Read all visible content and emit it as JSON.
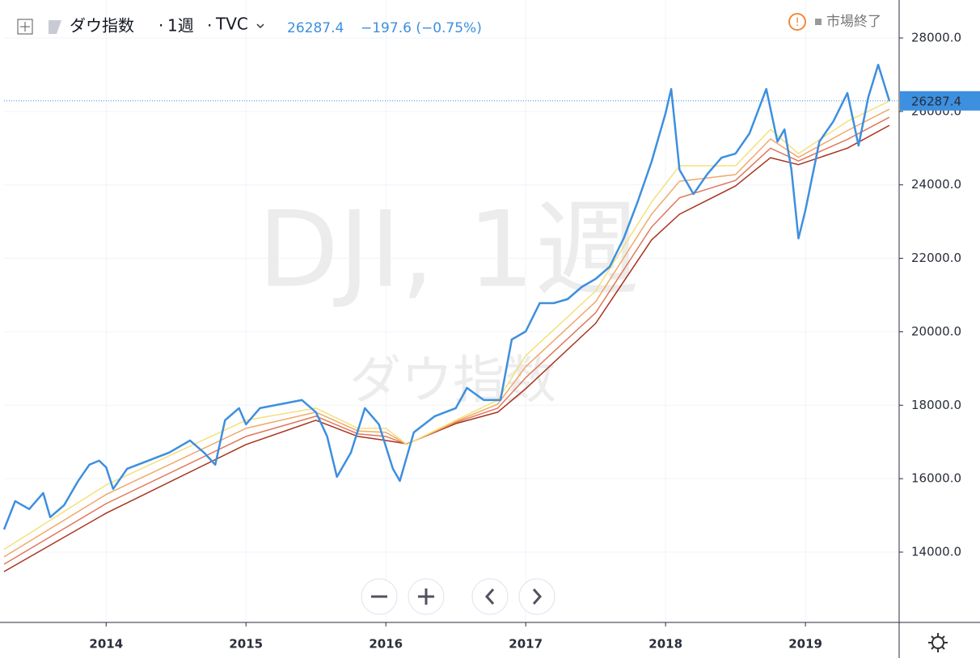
{
  "header": {
    "symbol": "ダウ指数",
    "interval": "1週",
    "exchange": "TVC",
    "last": "26287.4",
    "change": "−197.6 (−0.75%)",
    "status": "市場終了"
  },
  "watermark": {
    "main": "DJI, 1週",
    "sub": "ダウ指数"
  },
  "chart_data": {
    "type": "line",
    "xlim": [
      2013.27,
      2019.67
    ],
    "xticks": [
      2014,
      2015,
      2016,
      2017,
      2018,
      2019
    ],
    "ylim": [
      12085,
      29034
    ],
    "yticks": [
      {
        "value": 14000,
        "label": "14000.0"
      },
      {
        "value": 16000,
        "label": "16000.0"
      },
      {
        "value": 18000,
        "label": "18000.0"
      },
      {
        "value": 20000,
        "label": "20000.0"
      },
      {
        "value": 22000,
        "label": "22000.0"
      },
      {
        "value": 24000,
        "label": "24000.0"
      },
      {
        "value": 26000,
        "label": "26000.0"
      },
      {
        "value": 28000,
        "label": "28000.0"
      }
    ],
    "grid": true,
    "series": [
      {
        "color": "#a8321e",
        "x": [
          2013.27,
          2014,
          2015,
          2015.5,
          2015.8,
          2016,
          2016.15,
          2016.5,
          2016.8,
          2017,
          2017.5,
          2017.9,
          2018.1,
          2018.5,
          2018.75,
          2018.95,
          2019.3,
          2019.6
        ],
        "values": [
          13470,
          15060,
          16930,
          17590,
          17150,
          17040,
          16950,
          17500,
          17810,
          18450,
          20230,
          22500,
          23200,
          23970,
          24740,
          24550,
          25000,
          25620
        ]
      },
      {
        "color": "#e0785a",
        "x": [
          2013.27,
          2014,
          2015,
          2015.5,
          2015.8,
          2016,
          2016.15,
          2016.5,
          2016.8,
          2017,
          2017.5,
          2017.9,
          2018.1,
          2018.5,
          2018.75,
          2018.95,
          2019.3,
          2019.6
        ],
        "values": [
          13670,
          15320,
          17150,
          17700,
          17220,
          17150,
          16940,
          17530,
          17920,
          18750,
          20520,
          22850,
          23650,
          24120,
          25000,
          24650,
          25240,
          25840
        ]
      },
      {
        "color": "#f0a86a",
        "x": [
          2013.27,
          2014,
          2015,
          2015.5,
          2015.8,
          2016,
          2016.15,
          2016.5,
          2016.8,
          2017,
          2017.5,
          2017.9,
          2018.1,
          2018.5,
          2018.75,
          2018.95,
          2019.3,
          2019.6
        ],
        "values": [
          13870,
          15570,
          17370,
          17810,
          17300,
          17260,
          16940,
          17560,
          18030,
          19050,
          20820,
          23200,
          24100,
          24280,
          25250,
          24750,
          25480,
          26060
        ]
      },
      {
        "color": "#f5e07a",
        "x": [
          2013.27,
          2014,
          2015,
          2015.5,
          2015.8,
          2016,
          2016.15,
          2016.5,
          2016.8,
          2017,
          2017.5,
          2017.9,
          2018.1,
          2018.5,
          2018.75,
          2018.95,
          2019.3,
          2019.6
        ],
        "values": [
          14070,
          15830,
          17590,
          17920,
          17370,
          17370,
          16930,
          17590,
          18140,
          19350,
          21110,
          23530,
          24520,
          24520,
          25510,
          24850,
          25730,
          26280
        ]
      },
      {
        "color": "#3d8fdf",
        "x": [
          2013.27,
          2013.35,
          2013.45,
          2013.55,
          2013.6,
          2013.7,
          2013.8,
          2013.88,
          2013.95,
          2014,
          2014.05,
          2014.15,
          2014.3,
          2014.45,
          2014.6,
          2014.7,
          2014.78,
          2014.85,
          2014.95,
          2015,
          2015.1,
          2015.25,
          2015.4,
          2015.5,
          2015.58,
          2015.65,
          2015.75,
          2015.85,
          2015.95,
          2016.05,
          2016.1,
          2016.2,
          2016.35,
          2016.5,
          2016.58,
          2016.7,
          2016.82,
          2016.9,
          2017,
          2017.1,
          2017.2,
          2017.3,
          2017.4,
          2017.5,
          2017.6,
          2017.7,
          2017.8,
          2017.9,
          2018,
          2018.04,
          2018.1,
          2018.2,
          2018.3,
          2018.4,
          2018.5,
          2018.6,
          2018.72,
          2018.8,
          2018.85,
          2018.9,
          2018.95,
          2019,
          2019.1,
          2019.2,
          2019.3,
          2019.38,
          2019.45,
          2019.52,
          2019.6
        ],
        "values": [
          14617,
          15390,
          15170,
          15610,
          14950,
          15280,
          15940,
          16380,
          16490,
          16310,
          15720,
          16270,
          16490,
          16710,
          17040,
          16710,
          16380,
          17590,
          17920,
          17480,
          17920,
          18030,
          18140,
          17810,
          17150,
          16050,
          16710,
          17920,
          17480,
          16270,
          15940,
          17260,
          17700,
          17920,
          18470,
          18140,
          18140,
          19790,
          20010,
          20780,
          20780,
          20890,
          21220,
          21440,
          21770,
          22540,
          23530,
          24630,
          25950,
          26610,
          24410,
          23750,
          24300,
          24740,
          24850,
          25400,
          26610,
          25180,
          25510,
          24410,
          22540,
          23310,
          25180,
          25730,
          26500,
          25070,
          26390,
          27270,
          26287.4
        ]
      }
    ]
  }
}
